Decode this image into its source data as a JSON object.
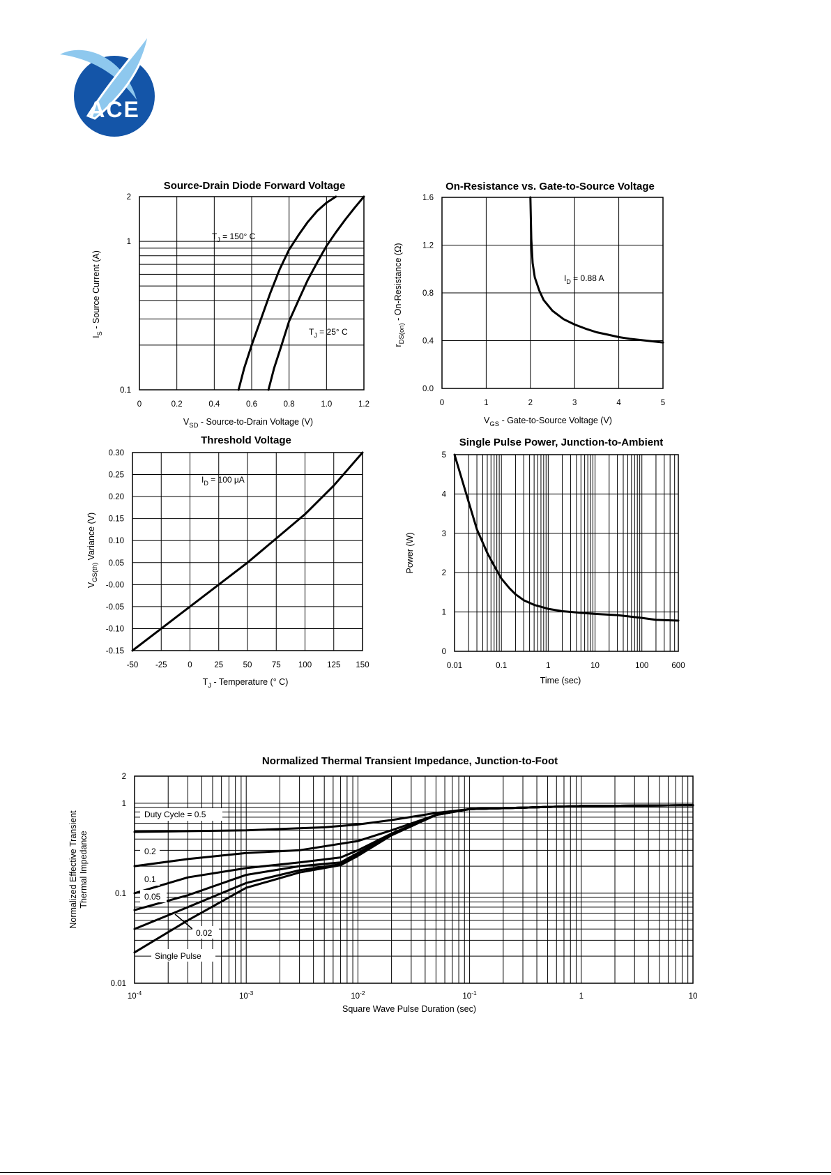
{
  "logo": {
    "text": "ACE",
    "colors": {
      "blue": "#1455a8",
      "light": "#8ec8ee"
    }
  },
  "charts": [
    {
      "title": "Source-Drain Diode Forward Voltage",
      "xlabel": {
        "main": "V",
        "sub": "SD",
        "rest": "  -  Source-to-Drain Voltage (V)"
      },
      "ylabel": {
        "main": "I",
        "sub": "S",
        "rest": "  -  Source Current (A)"
      },
      "xticks": [
        "0",
        "0.2",
        "0.4",
        "0.6",
        "0.8",
        "1.0",
        "1.2"
      ],
      "yticks": [
        "0.1",
        "1",
        "2"
      ],
      "annotations": [
        {
          "main": "T",
          "sub": "J",
          "rest": " = 150° C"
        },
        {
          "main": "T",
          "sub": "J",
          "rest": " = 25° C"
        }
      ]
    },
    {
      "title": "On-Resistance vs. Gate-to-Source Voltage",
      "xlabel": {
        "main": "V",
        "sub": "GS",
        "rest": " - Gate-to-Source Voltage (V)"
      },
      "ylabel": {
        "main": "r",
        "sub": "DS(on)",
        "rest": "  -  On-Resistance (Ω)"
      },
      "xticks": [
        "0",
        "1",
        "2",
        "3",
        "4",
        "5"
      ],
      "yticks": [
        "0.0",
        "0.4",
        "0.8",
        "1.2",
        "1.6"
      ],
      "annotations": [
        {
          "main": "I",
          "sub": "D",
          "rest": " = 0.88 A"
        }
      ]
    },
    {
      "title": "Threshold Voltage",
      "xlabel": {
        "main": "T",
        "sub": "J",
        "rest": " - Temperature (° C)"
      },
      "ylabel": {
        "main": "V",
        "sub": "GS(th)",
        "rest": "  Variance (V)"
      },
      "xticks": [
        "-50",
        "-25",
        "0",
        "25",
        "50",
        "75",
        "100",
        "125",
        "150"
      ],
      "yticks": [
        "-0.15",
        "-0.10",
        "-0.05",
        "-0.00",
        "0.05",
        "0.10",
        "0.15",
        "0.20",
        "0.25",
        "0.30"
      ],
      "annotations": [
        {
          "main": "I",
          "sub": "D",
          "rest": " = 100 µA"
        }
      ]
    },
    {
      "title": "Single Pulse Power, Junction-to-Ambient",
      "xlabel": {
        "main": "Time (sec)",
        "sub": "",
        "rest": ""
      },
      "ylabel": {
        "main": "Power (W)",
        "sub": "",
        "rest": ""
      },
      "xticks": [
        "0.01",
        "0.1",
        "1",
        "10",
        "100",
        "600"
      ],
      "yticks": [
        "0",
        "1",
        "2",
        "3",
        "4",
        "5"
      ],
      "annotations": []
    },
    {
      "title": "Normalized Thermal Transient Impedance, Junction-to-Foot",
      "xlabel": {
        "main": "Square Wave Pulse Duration (sec)",
        "sub": "",
        "rest": ""
      },
      "ylabel": {
        "line1": "Normalized Effective Transient",
        "line2": "Thermal Impedance"
      },
      "xticks": [
        {
          "base": "10",
          "exp": "-4"
        },
        {
          "base": "10",
          "exp": "-3"
        },
        {
          "base": "10",
          "exp": "-2"
        },
        {
          "base": "10",
          "exp": "-1"
        },
        {
          "base": "1",
          "exp": ""
        },
        {
          "base": "10",
          "exp": ""
        }
      ],
      "yticks": [
        "0.01",
        "0.1",
        "1",
        "2"
      ],
      "annotations": [
        "Duty Cycle = 0.5",
        "0.2",
        "0.1",
        "0.05",
        "0.02",
        "Single Pulse"
      ]
    }
  ],
  "chart_data": [
    {
      "type": "line",
      "title": "Source-Drain Diode Forward Voltage",
      "xlabel": "VSD - Source-to-Drain Voltage (V)",
      "ylabel": "IS - Source Current (A)",
      "xlim": [
        0,
        1.2
      ],
      "ylim": [
        0.1,
        2
      ],
      "yscale": "log",
      "grid": true,
      "series": [
        {
          "name": "TJ = 150° C",
          "x": [
            0.53,
            0.56,
            0.6,
            0.65,
            0.7,
            0.75,
            0.8,
            0.85,
            0.9,
            0.95,
            1.0,
            1.05
          ],
          "y": [
            0.1,
            0.14,
            0.2,
            0.3,
            0.45,
            0.65,
            0.88,
            1.1,
            1.35,
            1.6,
            1.82,
            2.0
          ]
        },
        {
          "name": "TJ = 25° C",
          "x": [
            0.69,
            0.72,
            0.76,
            0.8,
            0.85,
            0.9,
            0.95,
            1.0,
            1.05,
            1.1,
            1.15,
            1.2
          ],
          "y": [
            0.1,
            0.14,
            0.2,
            0.29,
            0.4,
            0.55,
            0.72,
            0.93,
            1.15,
            1.4,
            1.68,
            2.0
          ]
        }
      ]
    },
    {
      "type": "line",
      "title": "On-Resistance vs. Gate-to-Source Voltage",
      "xlabel": "VGS - Gate-to-Source Voltage (V)",
      "ylabel": "rDS(on) - On-Resistance (Ω)",
      "xlim": [
        0,
        5
      ],
      "ylim": [
        0,
        1.6
      ],
      "grid": true,
      "series": [
        {
          "name": "ID = 0.88 A",
          "x": [
            2.0,
            2.02,
            2.05,
            2.1,
            2.2,
            2.3,
            2.5,
            2.75,
            3.0,
            3.25,
            3.5,
            3.75,
            4.0,
            4.25,
            4.5,
            4.75,
            5.0
          ],
          "y": [
            1.6,
            1.25,
            1.05,
            0.93,
            0.82,
            0.74,
            0.65,
            0.58,
            0.535,
            0.5,
            0.47,
            0.45,
            0.43,
            0.415,
            0.405,
            0.395,
            0.385
          ]
        }
      ]
    },
    {
      "type": "line",
      "title": "Threshold Voltage",
      "xlabel": "TJ - Temperature (° C)",
      "ylabel": "VGS(th) Variance (V)",
      "xlim": [
        -50,
        150
      ],
      "ylim": [
        -0.15,
        0.3
      ],
      "grid": true,
      "series": [
        {
          "name": "ID = 100 µA",
          "x": [
            -50,
            -25,
            0,
            25,
            50,
            75,
            100,
            125,
            150
          ],
          "y": [
            -0.15,
            -0.1,
            -0.05,
            0.0,
            0.05,
            0.105,
            0.16,
            0.225,
            0.3
          ]
        }
      ]
    },
    {
      "type": "line",
      "title": "Single Pulse Power, Junction-to-Ambient",
      "xlabel": "Time (sec)",
      "ylabel": "Power (W)",
      "xlim": [
        0.01,
        600
      ],
      "ylim": [
        0,
        5
      ],
      "xscale": "log",
      "grid": true,
      "series": [
        {
          "name": "",
          "x": [
            0.01,
            0.015,
            0.02,
            0.03,
            0.05,
            0.08,
            0.1,
            0.15,
            0.2,
            0.3,
            0.5,
            1,
            2,
            5,
            10,
            30,
            100,
            200,
            600
          ],
          "y": [
            5.0,
            4.3,
            3.8,
            3.1,
            2.5,
            2.05,
            1.85,
            1.6,
            1.45,
            1.3,
            1.18,
            1.08,
            1.02,
            0.98,
            0.95,
            0.92,
            0.85,
            0.8,
            0.78
          ]
        }
      ]
    },
    {
      "type": "line",
      "title": "Normalized Thermal Transient Impedance, Junction-to-Foot",
      "xlabel": "Square Wave Pulse Duration (sec)",
      "ylabel": "Normalized Effective Transient Thermal Impedance",
      "xlim": [
        0.0001,
        10
      ],
      "ylim": [
        0.01,
        2
      ],
      "xscale": "log",
      "yscale": "log",
      "grid": true,
      "series": [
        {
          "name": "Duty Cycle = 0.5",
          "x": [
            0.0001,
            0.001,
            0.005,
            0.01,
            0.02,
            0.05,
            0.1,
            1,
            10
          ],
          "y": [
            0.48,
            0.5,
            0.54,
            0.58,
            0.65,
            0.78,
            0.86,
            0.93,
            0.95
          ]
        },
        {
          "name": "0.2",
          "x": [
            0.0001,
            0.0003,
            0.001,
            0.003,
            0.01,
            0.02,
            0.05,
            0.1,
            1,
            10
          ],
          "y": [
            0.2,
            0.24,
            0.28,
            0.3,
            0.38,
            0.5,
            0.74,
            0.86,
            0.93,
            0.95
          ]
        },
        {
          "name": "0.1",
          "x": [
            0.0001,
            0.0003,
            0.001,
            0.003,
            0.007,
            0.01,
            0.02,
            0.05,
            0.1,
            1,
            10
          ],
          "y": [
            0.1,
            0.15,
            0.19,
            0.22,
            0.25,
            0.3,
            0.46,
            0.74,
            0.86,
            0.93,
            0.95
          ]
        },
        {
          "name": "0.05",
          "x": [
            0.0001,
            0.0003,
            0.001,
            0.003,
            0.007,
            0.01,
            0.02,
            0.05,
            0.1,
            1,
            10
          ],
          "y": [
            0.065,
            0.095,
            0.16,
            0.2,
            0.22,
            0.28,
            0.45,
            0.74,
            0.86,
            0.93,
            0.95
          ]
        },
        {
          "name": "0.02",
          "x": [
            0.0001,
            0.0003,
            0.001,
            0.003,
            0.007,
            0.01,
            0.02,
            0.05,
            0.1,
            1,
            10
          ],
          "y": [
            0.04,
            0.07,
            0.13,
            0.18,
            0.21,
            0.27,
            0.45,
            0.74,
            0.86,
            0.93,
            0.95
          ]
        },
        {
          "name": "Single Pulse",
          "x": [
            0.0001,
            0.0003,
            0.001,
            0.003,
            0.007,
            0.01,
            0.02,
            0.05,
            0.1,
            1,
            10
          ],
          "y": [
            0.022,
            0.05,
            0.115,
            0.17,
            0.205,
            0.26,
            0.44,
            0.74,
            0.86,
            0.93,
            0.95
          ]
        }
      ]
    }
  ]
}
